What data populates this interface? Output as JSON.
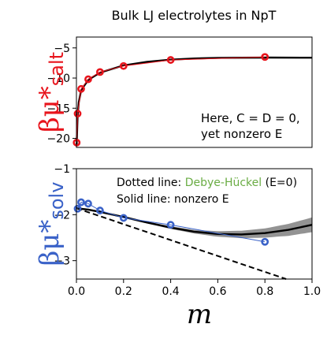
{
  "title": "Bulk LJ electrolytes in NpT",
  "xlabel": "m",
  "colors": {
    "salt": "#e8141c",
    "solv": "#3a62c8",
    "debye_huckel": "#6aac44",
    "fit": "#000000",
    "band": "#808080"
  },
  "top": {
    "ylabel_main": "βμ*",
    "ylabel_sub": "salt",
    "annotation": [
      "Here, C = D = 0,",
      "yet nonzero E"
    ]
  },
  "bottom": {
    "ylabel_main": "βμ*",
    "ylabel_sub": "solv",
    "annotation_line1_prefix": "Dotted line: ",
    "annotation_line1_highlight": "Debye-Hückel",
    "annotation_line1_suffix": " (E=0)",
    "annotation_line2": "Solid line: nonzero E"
  },
  "chart_data": [
    {
      "type": "scatter",
      "panel": "top",
      "title": "Bulk LJ electrolytes in NpT",
      "xlabel": "",
      "ylabel": "βμ*salt",
      "xlim": [
        0,
        1.0
      ],
      "ylim": [
        -21.5,
        -3.2
      ],
      "yticks": [
        -5,
        -10,
        -15,
        -20
      ],
      "ytick_labels": [
        "−5",
        "−10",
        "−15",
        "−20"
      ],
      "grid": false,
      "series": [
        {
          "style": "markers with thin connecting line",
          "x": [
            0.001,
            0.005,
            0.02,
            0.05,
            0.1,
            0.2,
            0.4,
            0.8
          ],
          "y": [
            -20.7,
            -15.9,
            -11.8,
            -10.2,
            -9.0,
            -8.0,
            -7.0,
            -6.5
          ]
        }
      ],
      "fit_curve": {
        "x": [
          0.001,
          0.005,
          0.01,
          0.02,
          0.05,
          0.1,
          0.2,
          0.3,
          0.4,
          0.5,
          0.6,
          0.8,
          1.0
        ],
        "y": [
          -21.0,
          -16.2,
          -14.0,
          -12.0,
          -10.3,
          -9.1,
          -7.9,
          -7.3,
          -6.95,
          -6.75,
          -6.65,
          -6.6,
          -6.62
        ]
      }
    },
    {
      "type": "scatter",
      "panel": "bottom",
      "xlabel": "m",
      "ylabel": "βμ*solv",
      "xlim": [
        0,
        1.0
      ],
      "ylim": [
        -3.4,
        -1.0
      ],
      "xticks": [
        0.0,
        0.2,
        0.4,
        0.6,
        0.8,
        1.0
      ],
      "xtick_labels": [
        "0.0",
        "0.2",
        "0.4",
        "0.6",
        "0.8",
        "1.0"
      ],
      "yticks": [
        -1,
        -2,
        -3
      ],
      "ytick_labels": [
        "−1",
        "−2",
        "−3"
      ],
      "grid": false,
      "series": [
        {
          "style": "markers with thin connecting line",
          "x": [
            0.005,
            0.02,
            0.05,
            0.1,
            0.2,
            0.4,
            0.8
          ],
          "y": [
            -1.87,
            -1.73,
            -1.76,
            -1.91,
            -2.07,
            -2.22,
            -2.59
          ]
        }
      ],
      "fit_curve": {
        "x": [
          0.0,
          0.05,
          0.1,
          0.2,
          0.3,
          0.4,
          0.5,
          0.6,
          0.7,
          0.8,
          0.9,
          1.0
        ],
        "y": [
          -1.86,
          -1.89,
          -1.94,
          -2.05,
          -2.17,
          -2.28,
          -2.37,
          -2.42,
          -2.43,
          -2.4,
          -2.33,
          -2.22
        ]
      },
      "fit_band_halfwidth": {
        "x": [
          0.0,
          0.1,
          0.2,
          0.3,
          0.4,
          0.5,
          0.6,
          0.7,
          0.8,
          0.9,
          1.0
        ],
        "h": [
          0.02,
          0.02,
          0.02,
          0.02,
          0.03,
          0.04,
          0.06,
          0.08,
          0.1,
          0.13,
          0.16
        ]
      },
      "debye_huckel_line": {
        "x": [
          0.0,
          0.89
        ],
        "y": [
          -1.86,
          -3.4
        ]
      }
    }
  ]
}
